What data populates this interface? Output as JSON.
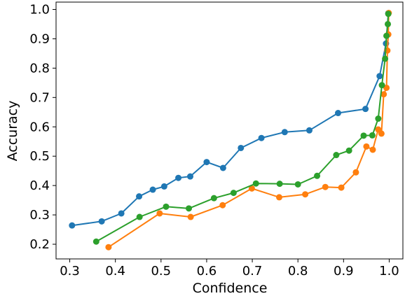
{
  "chart_data": {
    "type": "line",
    "xlabel": "Confidence",
    "ylabel": "Accuracy",
    "xlim": [
      0.27,
      1.03
    ],
    "ylim": [
      0.15,
      1.025
    ],
    "x_ticks": [
      0.3,
      0.4,
      0.5,
      0.6,
      0.7,
      0.8,
      0.9,
      1.0
    ],
    "y_ticks": [
      0.2,
      0.3,
      0.4,
      0.5,
      0.6,
      0.7,
      0.8,
      0.9,
      1.0
    ],
    "grid": false,
    "series": [
      {
        "color": "#1f77b4",
        "points": [
          [
            0.305,
            0.264
          ],
          [
            0.37,
            0.278
          ],
          [
            0.413,
            0.305
          ],
          [
            0.452,
            0.363
          ],
          [
            0.482,
            0.386
          ],
          [
            0.507,
            0.397
          ],
          [
            0.538,
            0.426
          ],
          [
            0.564,
            0.431
          ],
          [
            0.6,
            0.48
          ],
          [
            0.636,
            0.46
          ],
          [
            0.675,
            0.528
          ],
          [
            0.72,
            0.562
          ],
          [
            0.771,
            0.582
          ],
          [
            0.825,
            0.588
          ],
          [
            0.888,
            0.647
          ],
          [
            0.948,
            0.661
          ],
          [
            0.979,
            0.773
          ],
          [
            0.993,
            0.884
          ],
          [
            0.998,
            0.987
          ]
        ]
      },
      {
        "color": "#ff7f0e",
        "points": [
          [
            0.385,
            0.19
          ],
          [
            0.497,
            0.305
          ],
          [
            0.565,
            0.293
          ],
          [
            0.635,
            0.333
          ],
          [
            0.699,
            0.39
          ],
          [
            0.759,
            0.36
          ],
          [
            0.816,
            0.37
          ],
          [
            0.86,
            0.395
          ],
          [
            0.895,
            0.393
          ],
          [
            0.927,
            0.445
          ],
          [
            0.95,
            0.533
          ],
          [
            0.964,
            0.522
          ],
          [
            0.976,
            0.591
          ],
          [
            0.983,
            0.577
          ],
          [
            0.988,
            0.711
          ],
          [
            0.994,
            0.733
          ],
          [
            0.996,
            0.86
          ],
          [
            0.998,
            0.915
          ],
          [
            0.999,
            0.988
          ]
        ]
      },
      {
        "color": "#2ca02c",
        "points": [
          [
            0.358,
            0.209
          ],
          [
            0.453,
            0.293
          ],
          [
            0.511,
            0.328
          ],
          [
            0.561,
            0.322
          ],
          [
            0.616,
            0.357
          ],
          [
            0.659,
            0.375
          ],
          [
            0.708,
            0.407
          ],
          [
            0.76,
            0.406
          ],
          [
            0.8,
            0.404
          ],
          [
            0.842,
            0.433
          ],
          [
            0.884,
            0.504
          ],
          [
            0.912,
            0.519
          ],
          [
            0.944,
            0.57
          ],
          [
            0.963,
            0.571
          ],
          [
            0.976,
            0.628
          ],
          [
            0.984,
            0.742
          ],
          [
            0.991,
            0.832
          ],
          [
            0.994,
            0.91
          ],
          [
            0.997,
            0.95
          ],
          [
            0.998,
            0.985
          ]
        ]
      }
    ]
  }
}
